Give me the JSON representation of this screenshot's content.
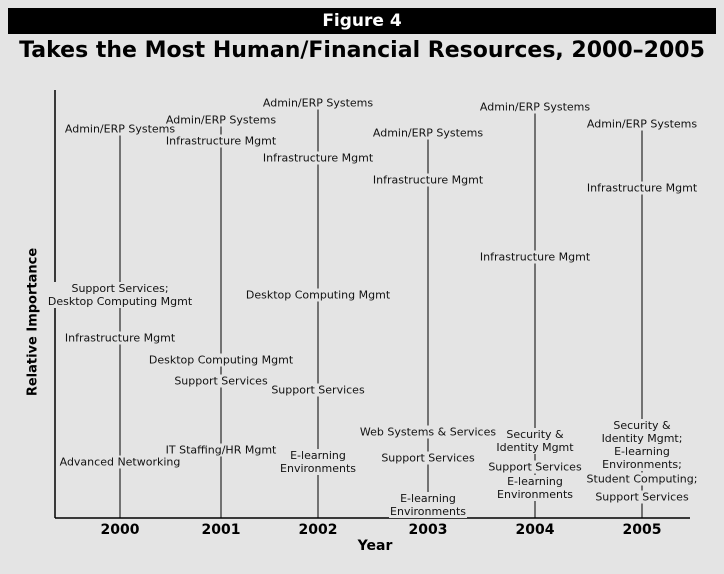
{
  "figure_label": "Figure 4",
  "chart_data": {
    "type": "label-plot",
    "title": "Takes the Most Human/Financial Resources, 2000–2005",
    "x_label": "Year",
    "y_label": "Relative Importance",
    "ylim": [
      0,
      100
    ],
    "categories": [
      "2000",
      "2001",
      "2002",
      "2003",
      "2004",
      "2005"
    ],
    "items": [
      [
        {
          "label": "Admin/ERP Systems",
          "value": 91
        },
        {
          "label": "Support Services;\nDesktop Computing Mgmt",
          "value": 52
        },
        {
          "label": "Infrastructure Mgmt",
          "value": 42
        },
        {
          "label": "Advanced Networking",
          "value": 13
        }
      ],
      [
        {
          "label": "Admin/ERP Systems",
          "value": 93
        },
        {
          "label": "Infrastructure Mgmt",
          "value": 88
        },
        {
          "label": "Desktop Computing Mgmt",
          "value": 37
        },
        {
          "label": "Support Services",
          "value": 32
        },
        {
          "label": "IT Staffing/HR Mgmt",
          "value": 16
        }
      ],
      [
        {
          "label": "Admin/ERP Systems",
          "value": 97
        },
        {
          "label": "Infrastructure Mgmt",
          "value": 84
        },
        {
          "label": "Desktop Computing Mgmt",
          "value": 52
        },
        {
          "label": "Support Services",
          "value": 30
        },
        {
          "label": "E-learning\nEnvironments",
          "value": 13
        }
      ],
      [
        {
          "label": "Admin/ERP Systems",
          "value": 90
        },
        {
          "label": "Infrastructure Mgmt",
          "value": 79
        },
        {
          "label": "Web Systems & Services",
          "value": 20
        },
        {
          "label": "Support Services",
          "value": 14
        },
        {
          "label": "E-learning\nEnvironments",
          "value": 3
        }
      ],
      [
        {
          "label": "Admin/ERP Systems",
          "value": 96
        },
        {
          "label": "Infrastructure Mgmt",
          "value": 61
        },
        {
          "label": "Security &\nIdentity Mgmt",
          "value": 18
        },
        {
          "label": "Support Services",
          "value": 12
        },
        {
          "label": "E-learning\nEnvironments",
          "value": 7
        }
      ],
      [
        {
          "label": "Admin/ERP Systems",
          "value": 92
        },
        {
          "label": "Infrastructure Mgmt",
          "value": 77
        },
        {
          "label": "Security &\nIdentity Mgmt;\nE-learning\nEnvironments;",
          "value": 17
        },
        {
          "label": "Student Computing;",
          "value": 9
        },
        {
          "label": "Support Services",
          "value": 5
        }
      ]
    ]
  }
}
